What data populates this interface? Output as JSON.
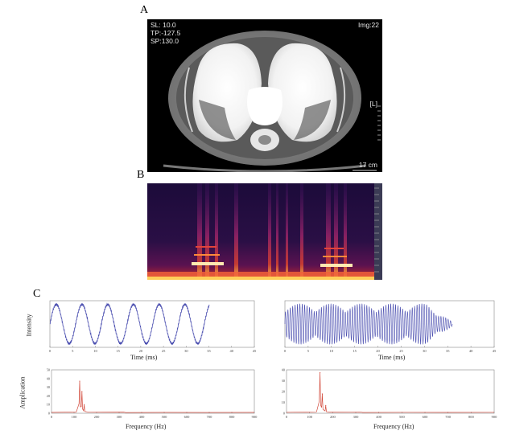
{
  "panels": {
    "a": "A",
    "b": "B",
    "c": "C"
  },
  "ct": {
    "overlay_top_left": [
      "SL: 10.0",
      "TP:-127.5",
      "SP:130.0"
    ],
    "overlay_top_right": "Img:22",
    "side_marker": "[L]",
    "scale_label": "17 cm"
  },
  "colors": {
    "waveform": "#4b4fb0",
    "spectrum": "#d24a3c",
    "ct_bg": "#000000"
  },
  "chart_data": [
    {
      "type": "line",
      "id": "left-intensity",
      "xlabel": "Time (ms)",
      "ylabel": "Intensity",
      "xlim": [
        0,
        47
      ],
      "x_ticks": [
        "0",
        "5",
        "10",
        "15",
        "20",
        "25",
        "30",
        "35",
        "40",
        "45"
      ],
      "series": [
        {
          "values_desc": "low-frequency oscillation, ~6 cycles",
          "cycles": 6.2,
          "span": 0.78
        }
      ]
    },
    {
      "type": "line",
      "id": "right-intensity",
      "xlabel": "Time (ms)",
      "ylabel": "",
      "xlim": [
        0,
        47
      ],
      "x_ticks": [
        "0",
        "5",
        "10",
        "15",
        "20",
        "25",
        "30",
        "35",
        "40",
        "45"
      ],
      "series": [
        {
          "values_desc": "dense oscillation with amplitude modulation",
          "carrier_cycles": 70,
          "envelope_cycles": 5.5,
          "span": 0.8
        }
      ]
    },
    {
      "type": "line",
      "id": "left-spectrum",
      "xlabel": "Frequency (Hz)",
      "ylabel": "Amplication",
      "xlim": [
        0,
        900
      ],
      "x_ticks": [
        "0",
        "100",
        "200",
        "300",
        "400",
        "500",
        "600",
        "700",
        "800",
        "900"
      ],
      "y_ticks": [
        "0",
        "10",
        "20",
        "30",
        "40",
        "50"
      ],
      "ylim": [
        0,
        50
      ],
      "peaks": [
        {
          "x": 125,
          "y": 37
        },
        {
          "x": 135,
          "y": 25
        },
        {
          "x": 145,
          "y": 10
        }
      ]
    },
    {
      "type": "line",
      "id": "right-spectrum",
      "xlabel": "Frequency (Hz)",
      "ylabel": "",
      "xlim": [
        0,
        900
      ],
      "x_ticks": [
        "0",
        "100",
        "200",
        "300",
        "400",
        "500",
        "600",
        "700",
        "800",
        "900"
      ],
      "y_ticks": [
        "0",
        "10",
        "20",
        "30",
        "40"
      ],
      "ylim": [
        0,
        45
      ],
      "peaks": [
        {
          "x": 145,
          "y": 42
        },
        {
          "x": 155,
          "y": 20
        },
        {
          "x": 170,
          "y": 8
        }
      ]
    }
  ]
}
